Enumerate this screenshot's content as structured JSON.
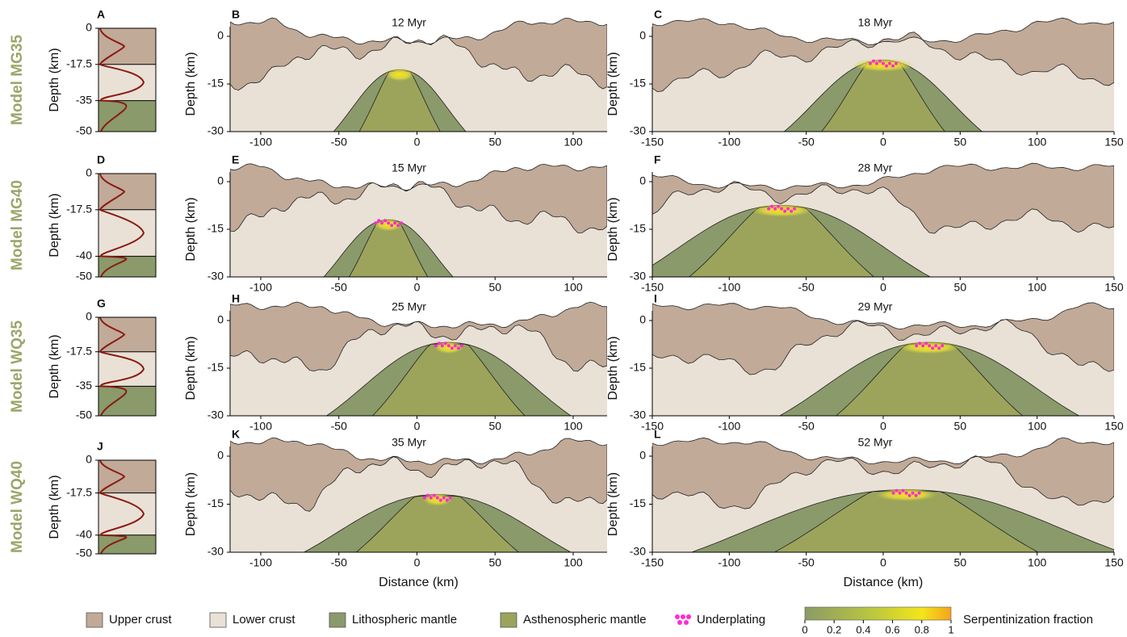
{
  "rows": [
    {
      "model": "Model MG35",
      "profile": {
        "letter": "A",
        "ylabel": "Depth (km)",
        "yticks": [
          0,
          -17.5,
          -35,
          -50
        ]
      },
      "sections": [
        {
          "letter": "B",
          "time": "12 Myr",
          "ylabel": "Depth (km)",
          "yticks": [
            0,
            -15,
            -30
          ],
          "xticks": [
            -100,
            -50,
            0,
            50,
            100
          ]
        },
        {
          "letter": "C",
          "time": "18 Myr",
          "ylabel": "Depth (km)",
          "yticks": [
            0,
            -15,
            -30
          ],
          "xticks": [
            -150,
            -100,
            -50,
            0,
            50,
            100,
            150
          ]
        }
      ]
    },
    {
      "model": "Model MG40",
      "profile": {
        "letter": "D",
        "ylabel": "Depth (km)",
        "yticks": [
          0,
          -17.5,
          -40,
          -50
        ]
      },
      "sections": [
        {
          "letter": "E",
          "time": "15 Myr",
          "ylabel": "Depth (km)",
          "yticks": [
            0,
            -15,
            -30
          ],
          "xticks": [
            -100,
            -50,
            0,
            50,
            100
          ]
        },
        {
          "letter": "F",
          "time": "28 Myr",
          "ylabel": "Depth (km)",
          "yticks": [
            0,
            -15,
            -30
          ],
          "xticks": [
            -150,
            -100,
            -50,
            0,
            50,
            100,
            150
          ]
        }
      ]
    },
    {
      "model": "Model  WQ35",
      "profile": {
        "letter": "G",
        "ylabel": "Depth (km)",
        "yticks": [
          0,
          -17.5,
          -35,
          -50
        ]
      },
      "sections": [
        {
          "letter": "H",
          "time": "25 Myr",
          "ylabel": "Depth (km)",
          "yticks": [
            0,
            -15,
            -30
          ],
          "xticks": [
            -100,
            -50,
            0,
            50,
            100
          ]
        },
        {
          "letter": "I",
          "time": "29 Myr",
          "ylabel": "Depth (km)",
          "yticks": [
            0,
            -15,
            -30
          ],
          "xticks": [
            -150,
            -100,
            -50,
            0,
            50,
            100,
            150
          ]
        }
      ]
    },
    {
      "model": "Model WQ40",
      "profile": {
        "letter": "J",
        "ylabel": "Depth (km)",
        "yticks": [
          0,
          -17.5,
          -40,
          -50
        ]
      },
      "sections": [
        {
          "letter": "K",
          "time": "35 Myr",
          "ylabel": "Depth (km)",
          "yticks": [
            0,
            -15,
            -30
          ],
          "xticks": [
            -100,
            -50,
            0,
            50,
            100
          ],
          "xlabel": "Distance (km)"
        },
        {
          "letter": "L",
          "time": "52 Myr",
          "ylabel": "Depth (km)",
          "yticks": [
            0,
            -15,
            -30
          ],
          "xticks": [
            -150,
            -100,
            -50,
            0,
            50,
            100,
            150
          ],
          "xlabel": "Distance (km)"
        }
      ]
    }
  ],
  "legend": {
    "items": [
      "Upper crust",
      "Lower crust",
      "Lithospheric mantle",
      "Asthenospheric mantle",
      "Underplating"
    ],
    "colorbar": {
      "ticks": [
        0,
        0.2,
        0.4,
        0.6,
        0.8,
        1
      ],
      "label": "Serpentinization fraction"
    }
  }
}
